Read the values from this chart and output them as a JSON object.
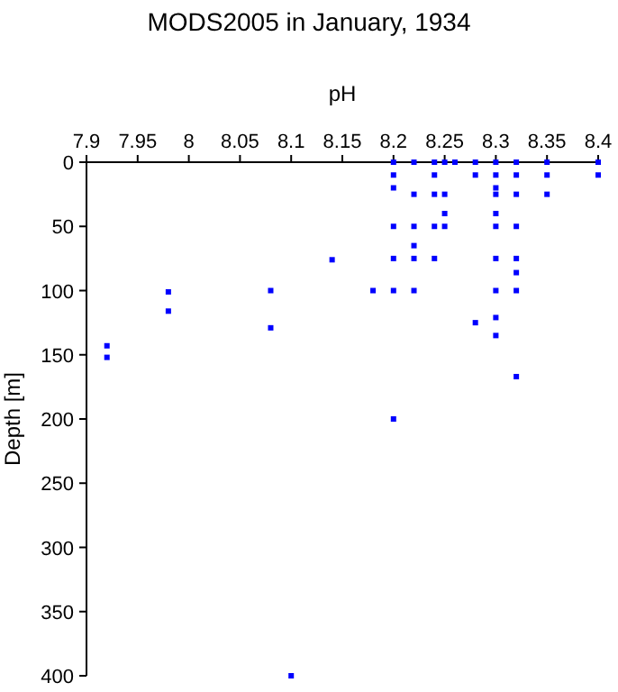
{
  "chart_data": {
    "type": "scatter",
    "title": "MODS2005 in January, 1934",
    "xlabel": "pH",
    "ylabel": "Depth [m]",
    "xlim": [
      7.9,
      8.4
    ],
    "xticks": [
      7.9,
      7.95,
      8,
      8.05,
      8.1,
      8.15,
      8.2,
      8.25,
      8.3,
      8.35,
      8.4
    ],
    "ylim": [
      400,
      0
    ],
    "yticks": [
      0,
      50,
      100,
      150,
      200,
      250,
      300,
      350,
      400
    ],
    "grid": false,
    "marker": "square",
    "series": [
      {
        "color": "#0000ff",
        "x": [
          8.2,
          8.2,
          8.2,
          8.2,
          8.2,
          8.2,
          8.2,
          8.22,
          8.22,
          8.22,
          8.22,
          8.22,
          8.22,
          8.24,
          8.24,
          8.24,
          8.24,
          8.24,
          8.25,
          8.25,
          8.25,
          8.25,
          8.26,
          8.28,
          8.28,
          8.28,
          8.3,
          8.3,
          8.3,
          8.3,
          8.3,
          8.3,
          8.3,
          8.3,
          8.3,
          8.3,
          8.32,
          8.32,
          8.32,
          8.32,
          8.32,
          8.32,
          8.32,
          8.32,
          8.35,
          8.35,
          8.35,
          8.4,
          8.4,
          8.18,
          7.92,
          7.92,
          7.98,
          7.98,
          8.08,
          8.08,
          8.14,
          8.1
        ],
        "values": [
          0,
          10,
          20,
          50,
          75,
          100,
          200,
          0,
          25,
          50,
          65,
          75,
          100,
          0,
          10,
          25,
          50,
          75,
          0,
          25,
          40,
          50,
          0,
          0,
          10,
          125,
          0,
          10,
          20,
          25,
          40,
          50,
          75,
          100,
          121,
          135,
          0,
          10,
          25,
          50,
          75,
          86,
          100,
          167,
          0,
          10,
          25,
          0,
          10,
          100,
          143,
          152,
          101,
          116,
          100,
          129,
          76,
          400
        ]
      }
    ]
  }
}
